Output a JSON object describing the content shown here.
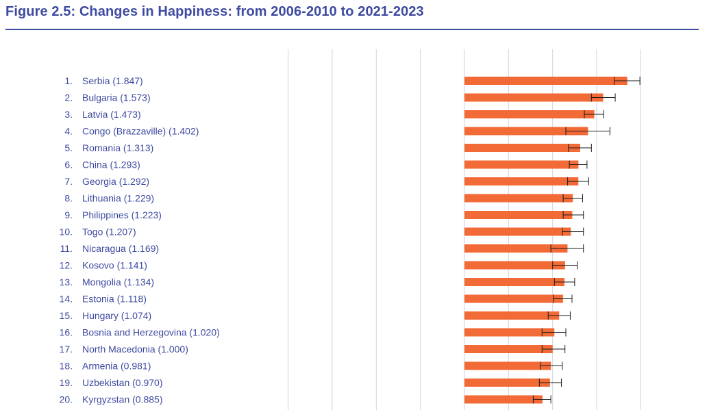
{
  "header": {
    "title": "Figure 2.5: Changes in Happiness: from 2006-2010 to 2021-2023"
  },
  "colors": {
    "bar": "#f26a35",
    "title": "#3d4aa0",
    "grid": "#cfd3e0",
    "rule": "#3d4aa0",
    "error_bar": "#1a1a1a"
  },
  "chart_data": {
    "type": "bar",
    "orientation": "horizontal",
    "title": "Figure 2.5: Changes in Happiness: from 2006-2010 to 2021-2023",
    "ranks": [
      "1.",
      "2.",
      "3.",
      "4.",
      "5.",
      "6.",
      "7.",
      "8.",
      "9.",
      "10.",
      "11.",
      "12.",
      "13.",
      "14.",
      "15.",
      "16.",
      "17.",
      "18.",
      "19.",
      "20."
    ],
    "labels": [
      "Serbia (1.847)",
      "Bulgaria (1.573)",
      "Latvia (1.473)",
      "Congo (Brazzaville) (1.402)",
      "Romania (1.313)",
      "China (1.293)",
      "Georgia (1.292)",
      "Lithuania (1.229)",
      "Philippines (1.223)",
      "Togo (1.207)",
      "Nicaragua (1.169)",
      "Kosovo (1.141)",
      "Mongolia (1.134)",
      "Estonia (1.118)",
      "Hungary (1.074)",
      "Bosnia and Herzegovina (1.020)",
      "North Macedonia (1.000)",
      "Armenia (0.981)",
      "Uzbekistan (0.970)",
      "Kyrgyzstan (0.885)"
    ],
    "values": [
      1.847,
      1.573,
      1.473,
      1.402,
      1.313,
      1.293,
      1.292,
      1.229,
      1.223,
      1.207,
      1.169,
      1.141,
      1.134,
      1.118,
      1.074,
      1.02,
      1.0,
      0.981,
      0.97,
      0.885
    ],
    "error_low": [
      1.7,
      1.44,
      1.36,
      1.15,
      1.18,
      1.19,
      1.17,
      1.12,
      1.12,
      1.11,
      0.98,
      1.0,
      1.02,
      1.01,
      0.95,
      0.88,
      0.88,
      0.86,
      0.85,
      0.78
    ],
    "error_high": [
      1.99,
      1.71,
      1.58,
      1.65,
      1.44,
      1.39,
      1.41,
      1.34,
      1.35,
      1.35,
      1.35,
      1.28,
      1.25,
      1.22,
      1.2,
      1.15,
      1.14,
      1.11,
      1.1,
      0.98
    ],
    "xlim": [
      -2,
      2
    ],
    "grid": true,
    "error_bars": true
  }
}
